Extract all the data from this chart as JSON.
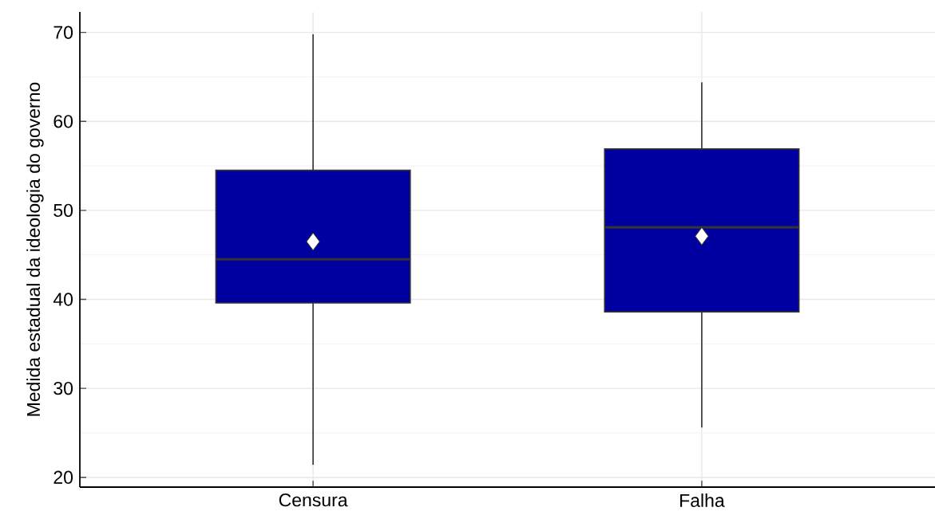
{
  "chart_data": {
    "type": "box",
    "ylabel": "Medida estadual da ideologia do governo",
    "categories": [
      "Censura",
      "Falha"
    ],
    "boxes": [
      {
        "low": 21.4,
        "q1": 39.6,
        "median": 44.5,
        "q3": 54.5,
        "high": 69.8,
        "mean": 46.5
      },
      {
        "low": 25.6,
        "q1": 38.6,
        "median": 48.1,
        "q3": 56.9,
        "high": 64.4,
        "mean": 47.1
      }
    ],
    "color": "#0000a0",
    "ylim": [
      18.9,
      72.3
    ],
    "yticks": [
      20,
      30,
      40,
      50,
      60,
      70
    ],
    "grid": true,
    "marker": "diamond"
  }
}
